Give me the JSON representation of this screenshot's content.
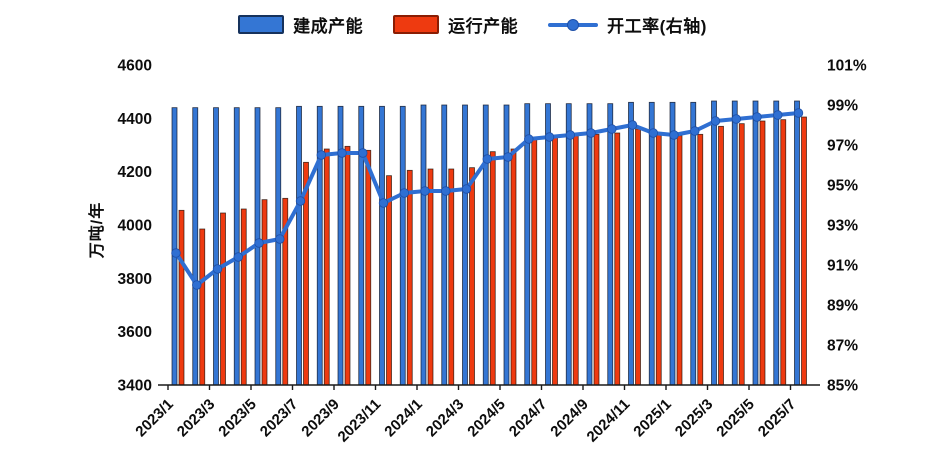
{
  "legend": {
    "items": [
      {
        "label": "建成产能",
        "type": "bar",
        "color": "#3476d4"
      },
      {
        "label": "运行产能",
        "type": "bar",
        "color": "#ee3a10"
      },
      {
        "label": "开工率(右轴)",
        "type": "line",
        "color": "#2f6fd2"
      }
    ]
  },
  "axes": {
    "left_title": "万吨/年",
    "left_tick_labels": [
      "4600",
      "4400",
      "4200",
      "4000",
      "3800",
      "3600",
      "3400"
    ],
    "right_tick_labels": [
      "101%",
      "99%",
      "97%",
      "95%",
      "93%",
      "91%",
      "89%",
      "87%",
      "85%"
    ],
    "x_tick_labels": [
      "2023/1",
      "2023/3",
      "2023/5",
      "2023/7",
      "2023/9",
      "2023/11",
      "2024/1",
      "2024/3",
      "2024/5",
      "2024/7",
      "2024/9",
      "2024/11",
      "2025/1",
      "2025/3",
      "2025/5",
      "2025/7"
    ]
  },
  "chart_data": {
    "type": "bar",
    "note": "monthly dual-axis combo: two bar series on left axis (万吨/年, 3400-4600) and one line series on right axis (85%-101%)",
    "categories": [
      "2023/1",
      "2023/2",
      "2023/3",
      "2023/4",
      "2023/5",
      "2023/6",
      "2023/7",
      "2023/8",
      "2023/9",
      "2023/10",
      "2023/11",
      "2023/12",
      "2024/1",
      "2024/2",
      "2024/3",
      "2024/4",
      "2024/5",
      "2024/6",
      "2024/7",
      "2024/8",
      "2024/9",
      "2024/10",
      "2024/11",
      "2024/12",
      "2025/1",
      "2025/2",
      "2025/3",
      "2025/4",
      "2025/5",
      "2025/6",
      "2025/7"
    ],
    "left_axis_range": [
      3400,
      4600
    ],
    "right_axis_range": [
      85,
      101
    ],
    "grid": false,
    "legend_position": "top",
    "series": [
      {
        "name": "建成产能",
        "type": "bar",
        "axis": "left",
        "color": "#3476d4",
        "values": [
          4440,
          4440,
          4440,
          4440,
          4440,
          4440,
          4445,
          4445,
          4445,
          4445,
          4445,
          4445,
          4450,
          4450,
          4450,
          4450,
          4450,
          4455,
          4455,
          4455,
          4455,
          4455,
          4460,
          4460,
          4460,
          4460,
          4465,
          4465,
          4465,
          4465,
          4465
        ]
      },
      {
        "name": "运行产能",
        "type": "bar",
        "axis": "left",
        "color": "#ee3a10",
        "values": [
          4055,
          3985,
          4045,
          4060,
          4095,
          4100,
          4235,
          4285,
          4295,
          4280,
          4185,
          4205,
          4210,
          4210,
          4215,
          4275,
          4285,
          4325,
          4330,
          4335,
          4340,
          4345,
          4360,
          4340,
          4335,
          4340,
          4370,
          4380,
          4390,
          4395,
          4405
        ]
      },
      {
        "name": "开工率(右轴)",
        "type": "line",
        "axis": "right",
        "color": "#2f6fd2",
        "unit": "%",
        "values": [
          91.6,
          90.0,
          90.8,
          91.4,
          92.1,
          92.3,
          94.2,
          96.5,
          96.6,
          96.6,
          94.1,
          94.6,
          94.7,
          94.7,
          94.8,
          96.3,
          96.4,
          97.3,
          97.4,
          97.5,
          97.6,
          97.8,
          98.0,
          97.6,
          97.5,
          97.7,
          98.2,
          98.3,
          98.4,
          98.5,
          98.6
        ]
      }
    ]
  }
}
